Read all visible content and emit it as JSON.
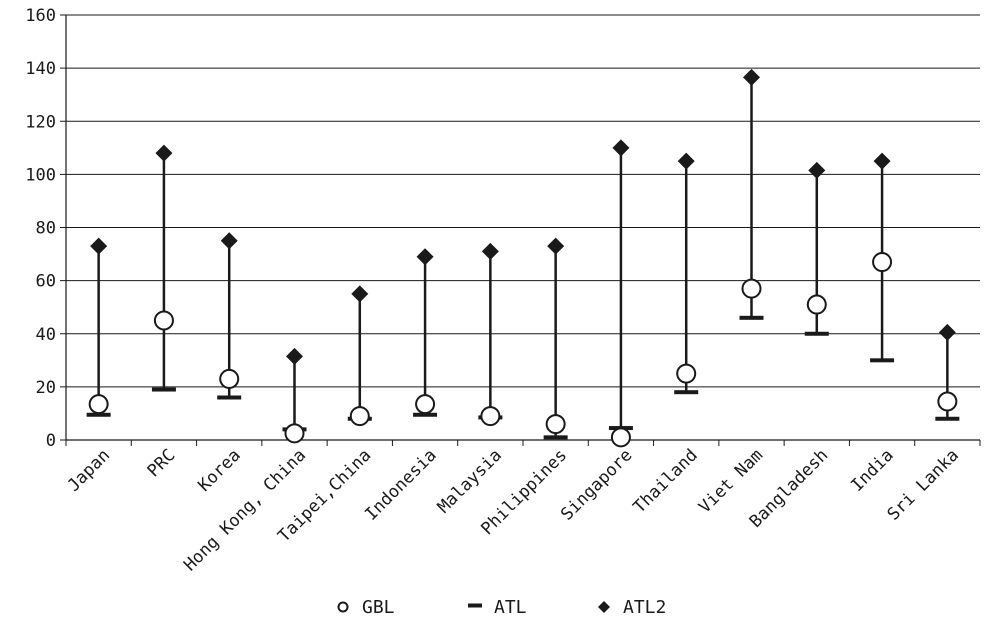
{
  "chart_data": {
    "type": "scatter",
    "title": "",
    "xlabel": "",
    "ylabel": "",
    "ylim": [
      0,
      160
    ],
    "yticks": [
      0,
      20,
      40,
      60,
      80,
      100,
      120,
      140,
      160
    ],
    "grid": true,
    "legend_position": "bottom",
    "categories": [
      "Japan",
      "PRC",
      "Korea",
      "Hong Kong, China",
      "Taipei,China",
      "Indonesia",
      "Malaysia",
      "Philippines",
      "Singapore",
      "Thailand",
      "Viet Nam",
      "Bangladesh",
      "India",
      "Sri Lanka"
    ],
    "series": [
      {
        "name": "GBL",
        "marker": "open-circle",
        "values": [
          13.5,
          45,
          23,
          2.5,
          9,
          13.5,
          9,
          6,
          1,
          25,
          57,
          51,
          67,
          14.5
        ]
      },
      {
        "name": "ATL",
        "marker": "dash",
        "values": [
          9.5,
          19,
          16,
          4,
          8,
          9.5,
          8.5,
          1,
          4.5,
          18,
          46,
          40,
          30,
          8
        ]
      },
      {
        "name": "ATL2",
        "marker": "diamond",
        "values": [
          73,
          108,
          75,
          31.5,
          55,
          69,
          71,
          73,
          110,
          105,
          136.5,
          101.5,
          105,
          40.5
        ]
      }
    ],
    "colors": {
      "ink": "#1a1a1a",
      "grid": "#1a1a1a",
      "background": "#ffffff"
    }
  }
}
